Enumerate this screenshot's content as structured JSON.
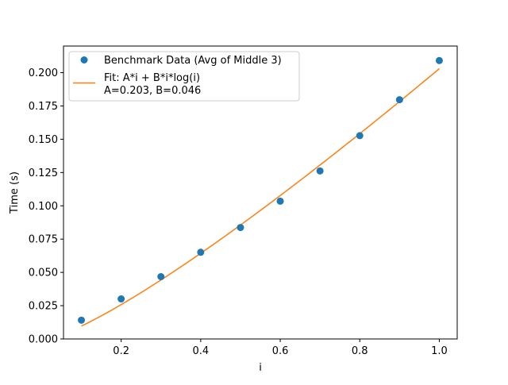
{
  "chart_data": {
    "type": "scatter",
    "title": "",
    "xlabel": "i",
    "ylabel": "Time (s)",
    "xlim": [
      0.055,
      1.045
    ],
    "ylim": [
      0.0,
      0.22
    ],
    "xticks": [
      0.2,
      0.4,
      0.6,
      0.8,
      1.0
    ],
    "xtick_labels": [
      "0.2",
      "0.4",
      "0.6",
      "0.8",
      "1.0"
    ],
    "yticks": [
      0.0,
      0.025,
      0.05,
      0.075,
      0.1,
      0.125,
      0.15,
      0.175,
      0.2
    ],
    "ytick_labels": [
      "0.000",
      "0.025",
      "0.050",
      "0.075",
      "0.100",
      "0.125",
      "0.150",
      "0.175",
      "0.200"
    ],
    "grid": false,
    "legend_position": "top-left",
    "series": [
      {
        "name": "Benchmark Data (Avg of Middle 3)",
        "kind": "scatter",
        "color": "#1f77b4",
        "x": [
          0.1,
          0.2,
          0.3,
          0.4,
          0.5,
          0.6,
          0.7,
          0.8,
          0.9,
          1.0
        ],
        "y": [
          0.0141,
          0.0301,
          0.0468,
          0.0651,
          0.0837,
          0.1035,
          0.1262,
          0.1527,
          0.1797,
          0.2091
        ]
      },
      {
        "name": "Fit: A*i + B*i*log(i)\nA=0.203, B=0.046",
        "name_lines": [
          "Fit: A*i + B*i*log(i)",
          "A=0.203, B=0.046"
        ],
        "kind": "line",
        "color": "#ff7f0e",
        "fit": {
          "A": 0.203,
          "B": 0.046
        }
      }
    ]
  }
}
